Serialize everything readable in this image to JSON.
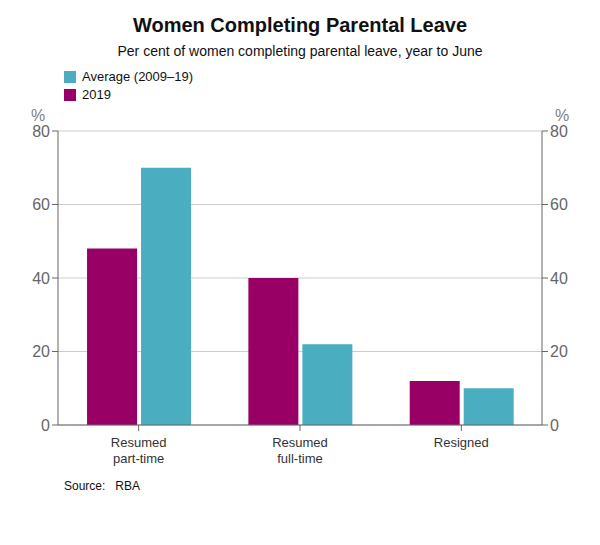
{
  "chart_data": {
    "type": "bar",
    "title": "Women Completing Parental Leave",
    "subtitle": "Per cent of women completing parental leave, year to June",
    "source": "Source:   RBA",
    "categories": [
      "Resumed\npart-time",
      "Resumed\nfull-time",
      "Resigned"
    ],
    "series": [
      {
        "name": "2019",
        "color": "#990066",
        "values": [
          48,
          40,
          12
        ]
      },
      {
        "name": "Average (2009–19)",
        "color": "#4aadc0",
        "values": [
          70,
          22,
          10
        ]
      }
    ],
    "ylabel": "%",
    "y2label": "%",
    "ylim": [
      0,
      80
    ],
    "yticks": [
      0,
      20,
      40,
      60,
      80
    ],
    "y2lim": [
      0,
      80
    ],
    "y2ticks": [
      0,
      20,
      40,
      60,
      80
    ],
    "grid": true,
    "legend": "upper left"
  }
}
